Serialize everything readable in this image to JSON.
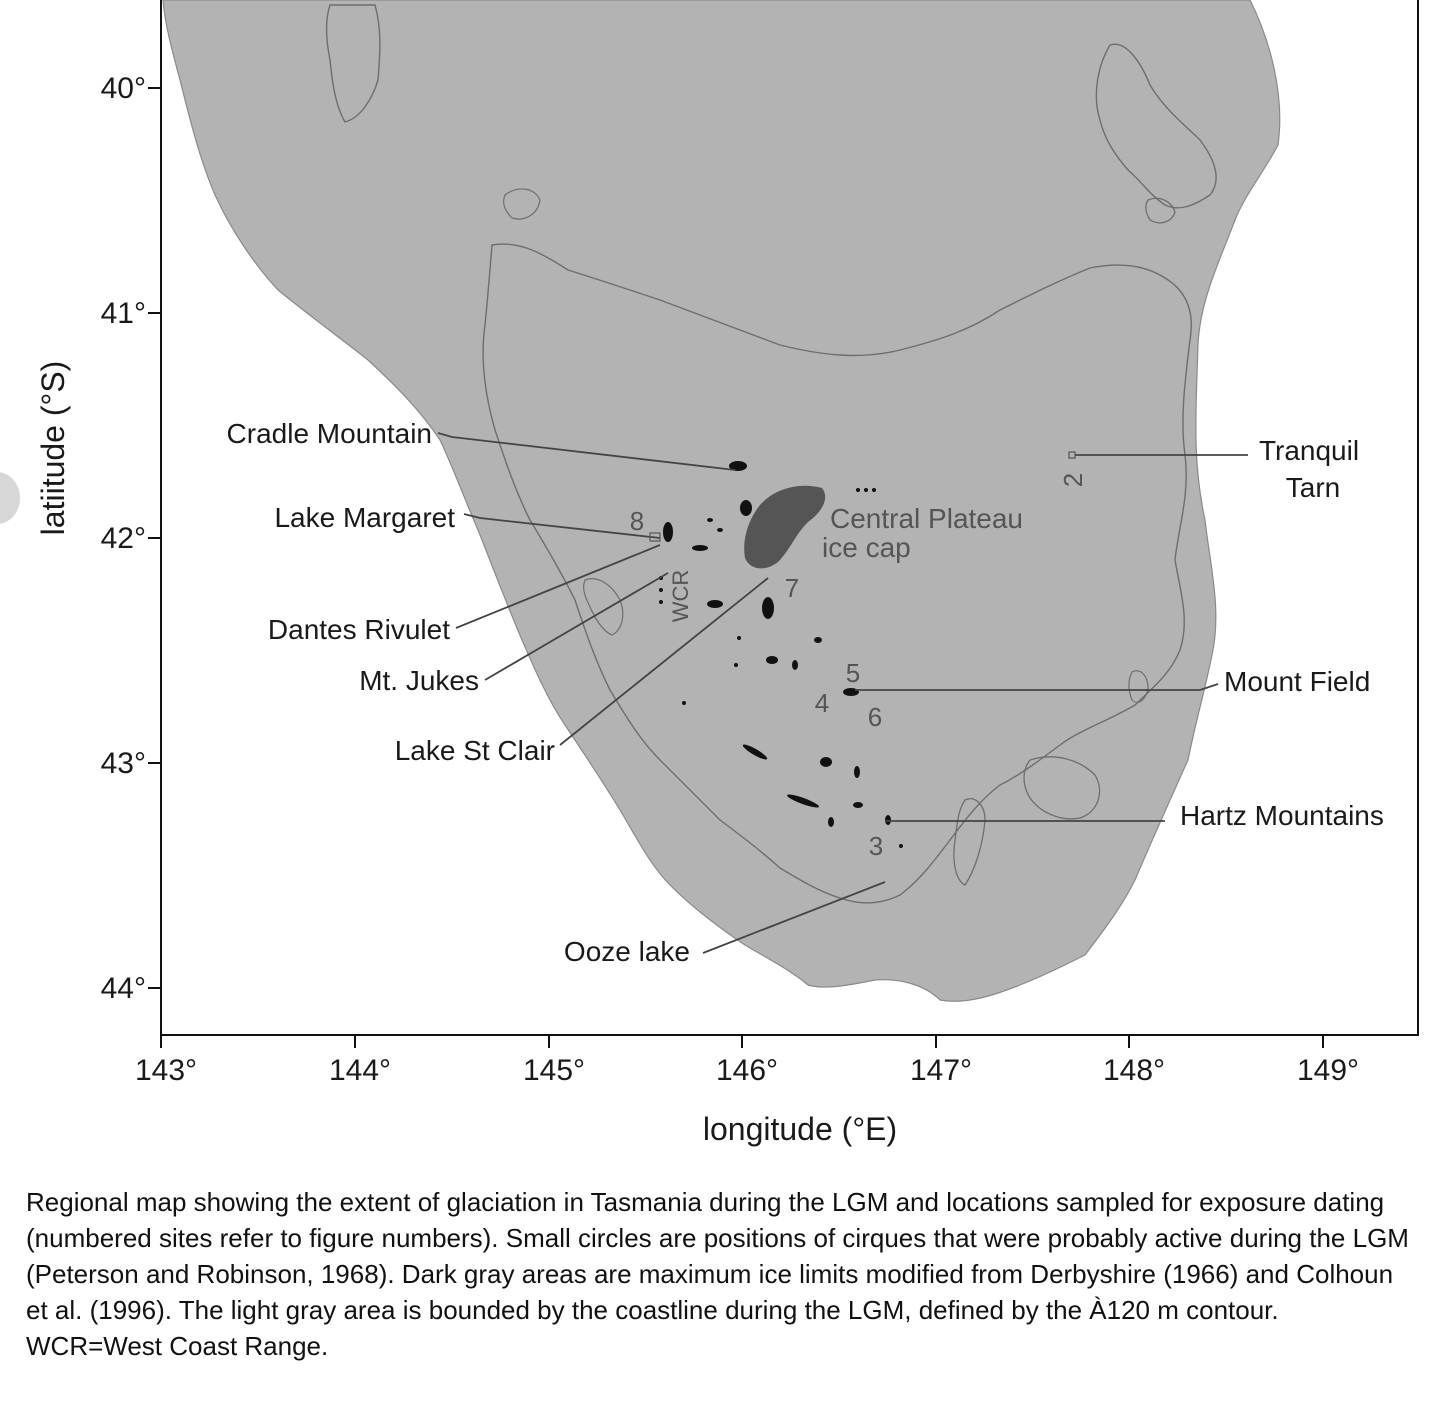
{
  "map": {
    "y_axis": {
      "title": "latiitude (°S)",
      "ticks": [
        "40°",
        "41°",
        "42°",
        "43°",
        "44°"
      ]
    },
    "x_axis": {
      "title": "longitude (°E)",
      "ticks": [
        "143°",
        "144°",
        "145°",
        "146°",
        "147°",
        "148°",
        "149°"
      ]
    },
    "place_labels": {
      "cradle_mountain": "Cradle Mountain",
      "lake_margaret": "Lake Margaret",
      "dantes_rivulet": "Dantes Rivulet",
      "mt_jukes": "Mt. Jukes",
      "lake_st_clair": "Lake St Clair",
      "ooze_lake": "Ooze lake",
      "tranquil_tarn_line1": "Tranquil",
      "tranquil_tarn_line2": "Tarn",
      "mount_field": "Mount Field",
      "hartz_mountains": "Hartz Mountains",
      "central_plateau_line1": "Central Plateau",
      "central_plateau_line2": "ice cap",
      "wcr": "WCR"
    },
    "site_numbers": [
      "2",
      "3",
      "4",
      "5",
      "6",
      "7",
      "8"
    ],
    "colors": {
      "lgm_land": "#b3b3b3",
      "sea": "#ffffff",
      "ice_cap": "#555555",
      "glacier": "#111111",
      "coastline": "#6e6e6e"
    }
  },
  "caption": "Regional map showing the extent of glaciation in Tasmania during the LGM and locations sampled for exposure dating (numbered sites refer to figure numbers). Small circles are positions of cirques that were probably active during the LGM (Peterson and Robinson, 1968). Dark gray areas are maximum ice limits modified from Derbyshire (1966) and Colhoun et al. (1996). The light gray area is bounded by the coastline during the LGM, defined by the À120 m contour. WCR=West Coast Range."
}
